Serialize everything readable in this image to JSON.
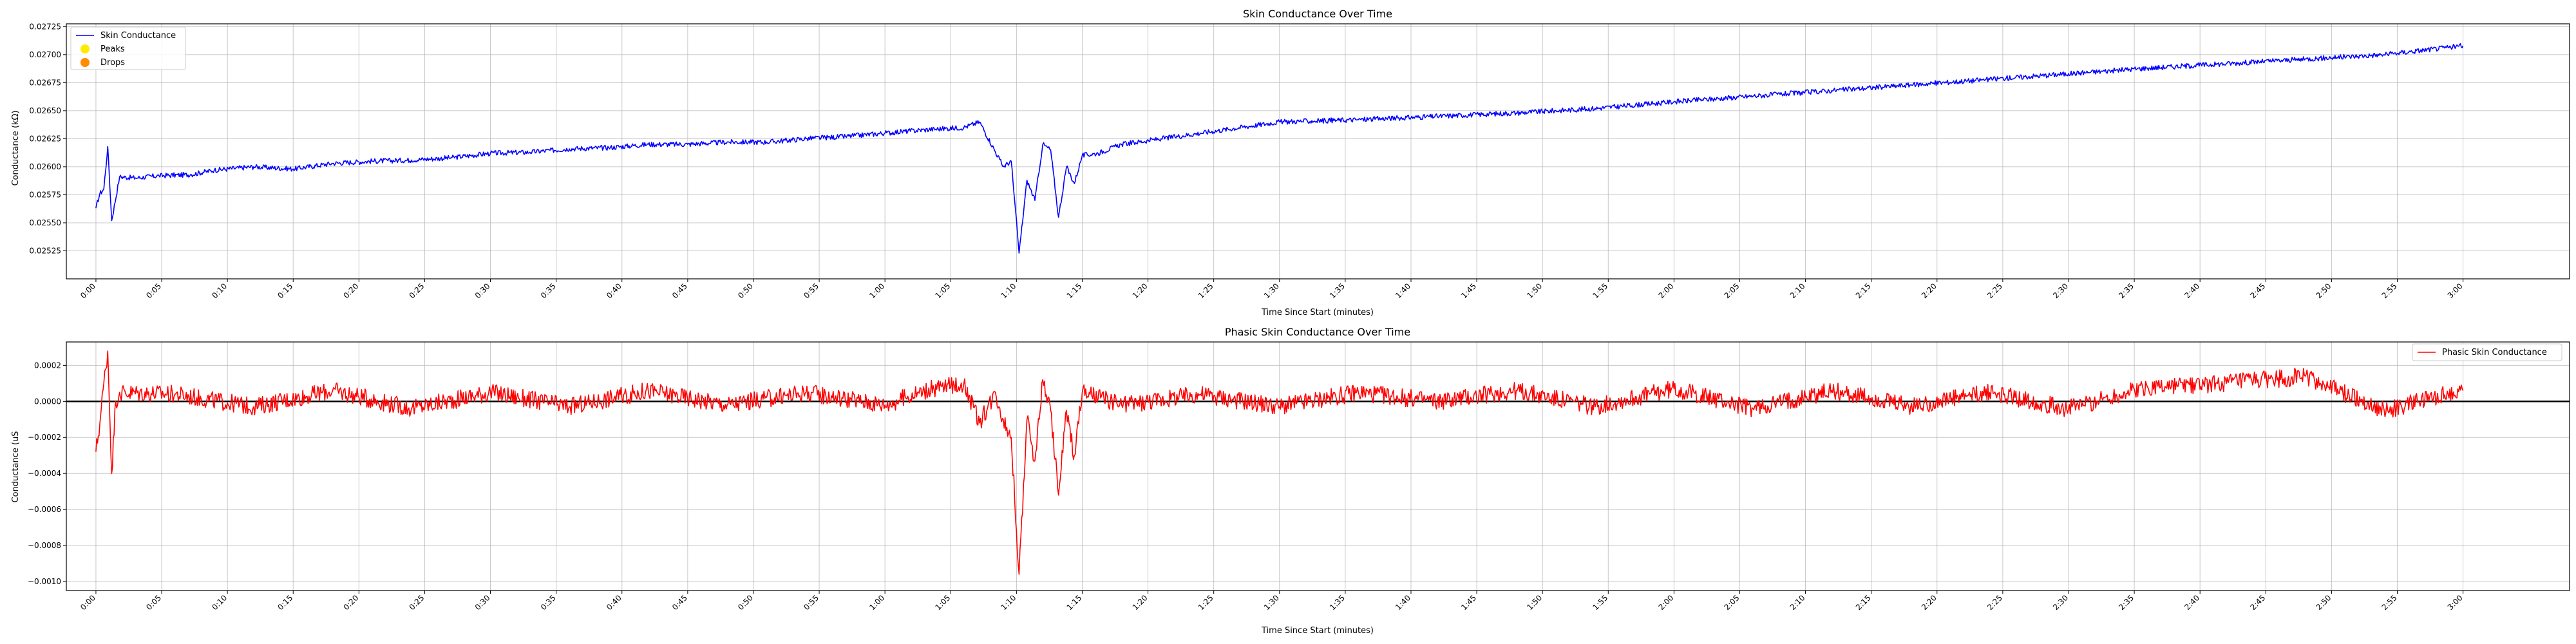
{
  "chart_data": [
    {
      "type": "line",
      "title": "Skin Conductance Over Time",
      "xlabel": "Time Since Start (minutes)",
      "ylabel": "Conductance (kΩ)",
      "xlim": [
        -0.0375,
        3.135
      ],
      "ylim": [
        0.025,
        0.027275
      ],
      "xticks": [
        "0:00",
        "0:05",
        "0:10",
        "0:15",
        "0:20",
        "0:25",
        "0:30",
        "0:35",
        "0:40",
        "0:45",
        "0:50",
        "0:55",
        "1:00",
        "1:05",
        "1:10",
        "1:15",
        "1:20",
        "1:25",
        "1:30",
        "1:35",
        "1:40",
        "1:45",
        "1:50",
        "1:55",
        "2:00",
        "2:05",
        "2:10",
        "2:15",
        "2:20",
        "2:25",
        "2:30",
        "2:35",
        "2:40",
        "2:45",
        "2:50",
        "2:55",
        "3:00"
      ],
      "yticks": [
        "0.02525",
        "0.02550",
        "0.02575",
        "0.02600",
        "0.02625",
        "0.02650",
        "0.02675",
        "0.02700",
        "0.02725"
      ],
      "grid": true,
      "legend_position": "top-left",
      "legend": [
        {
          "label": "Skin Conductance",
          "kind": "line",
          "color": "#0000ff"
        },
        {
          "label": "Peaks",
          "kind": "marker",
          "color": "#ffea00"
        },
        {
          "label": "Drops",
          "kind": "marker",
          "color": "#ff8c00"
        }
      ],
      "series": [
        {
          "name": "Skin Conductance",
          "color": "#0000ff",
          "x": [
            0.0,
            0.005,
            0.01,
            0.015,
            0.02,
            0.03,
            0.05,
            0.08,
            0.12,
            0.15,
            0.2,
            0.25,
            0.3,
            0.35,
            0.4,
            0.45,
            0.5,
            0.55,
            0.6,
            0.65,
            0.7,
            0.75,
            0.8,
            0.85,
            0.9,
            0.95,
            1.0,
            1.05,
            1.1,
            1.12,
            1.15,
            1.16,
            1.17,
            1.18,
            1.19,
            1.2,
            1.21,
            1.22,
            1.23,
            1.24,
            1.25,
            1.27,
            1.3,
            1.35,
            1.4,
            1.5,
            1.6,
            1.7,
            1.8,
            1.9,
            2.0,
            2.1,
            2.2,
            2.3,
            2.4,
            2.5,
            2.6,
            2.7,
            2.8,
            2.9,
            3.0
          ],
          "y": [
            0.02563,
            0.02576,
            0.0258,
            0.02618,
            0.02552,
            0.02591,
            0.0259,
            0.02592,
            0.02593,
            0.02597,
            0.026,
            0.02598,
            0.02603,
            0.02605,
            0.02606,
            0.02608,
            0.02612,
            0.02613,
            0.02616,
            0.02617,
            0.0262,
            0.0262,
            0.02622,
            0.02622,
            0.02625,
            0.02627,
            0.0263,
            0.02633,
            0.02635,
            0.0264,
            0.026,
            0.02605,
            0.02523,
            0.02588,
            0.0257,
            0.0262,
            0.02615,
            0.02555,
            0.026,
            0.02585,
            0.0261,
            0.02612,
            0.0262,
            0.02625,
            0.0263,
            0.0264,
            0.02642,
            0.02645,
            0.02648,
            0.02652,
            0.02658,
            0.02663,
            0.02668,
            0.02673,
            0.02678,
            0.02683,
            0.02688,
            0.02692,
            0.02696,
            0.027,
            0.02708
          ]
        }
      ]
    },
    {
      "type": "line",
      "title": "Phasic Skin Conductance Over Time",
      "xlabel": "Time Since Start (minutes)",
      "ylabel": "Conductance (uS",
      "xlim": [
        -0.0375,
        3.135
      ],
      "ylim": [
        -0.00105,
        0.00033
      ],
      "xticks": [
        "0:00",
        "0:05",
        "0:10",
        "0:15",
        "0:20",
        "0:25",
        "0:30",
        "0:35",
        "0:40",
        "0:45",
        "0:50",
        "0:55",
        "1:00",
        "1:05",
        "1:10",
        "1:15",
        "1:20",
        "1:25",
        "1:30",
        "1:35",
        "1:40",
        "1:45",
        "1:50",
        "1:55",
        "2:00",
        "2:05",
        "2:10",
        "2:15",
        "2:20",
        "2:25",
        "2:30",
        "2:35",
        "2:40",
        "2:45",
        "2:50",
        "2:55",
        "3:00"
      ],
      "yticks": [
        "−0.0010",
        "−0.0008",
        "−0.0006",
        "−0.0004",
        "−0.0002",
        "0.0000",
        "0.0002"
      ],
      "grid": true,
      "legend_position": "top-right",
      "legend": [
        {
          "label": "Phasic Skin Conductance",
          "kind": "line",
          "color": "#ff0000"
        }
      ],
      "hline": 0,
      "series": [
        {
          "name": "Phasic Skin Conductance",
          "color": "#ff0000",
          "x": [
            0.0,
            0.005,
            0.01,
            0.015,
            0.02,
            0.025,
            0.03,
            0.1,
            0.2,
            0.3,
            0.4,
            0.5,
            0.6,
            0.7,
            0.8,
            0.9,
            1.0,
            1.05,
            1.1,
            1.12,
            1.14,
            1.15,
            1.16,
            1.17,
            1.18,
            1.19,
            1.2,
            1.21,
            1.22,
            1.23,
            1.24,
            1.25,
            1.3,
            1.4,
            1.5,
            1.6,
            1.7,
            1.8,
            1.9,
            2.0,
            2.1,
            2.2,
            2.3,
            2.4,
            2.5,
            2.6,
            2.7,
            2.8,
            2.9,
            3.0
          ],
          "y": [
            -0.00028,
            -0.00012,
            0.0001,
            0.00028,
            -0.0004,
            0.0,
            5e-05,
            4e-05,
            -3e-05,
            6e-05,
            -4e-05,
            5e-05,
            -3e-05,
            6e-05,
            -2e-05,
            5e-05,
            -2e-05,
            6e-05,
            0.0001,
            -0.00012,
            5e-05,
            -0.0001,
            -0.0002,
            -0.00096,
            -0.0001,
            -0.00033,
            0.00012,
            -5e-05,
            -0.00052,
            -5e-05,
            -0.0003,
            5e-05,
            -2e-05,
            4e-05,
            -3e-05,
            5e-05,
            0.0,
            6e-05,
            -3e-05,
            7e-05,
            -4e-05,
            6e-05,
            -3e-05,
            5e-05,
            -4e-05,
            8e-05,
            0.0001,
            0.00014,
            -5e-05,
            6e-05
          ]
        }
      ]
    }
  ]
}
